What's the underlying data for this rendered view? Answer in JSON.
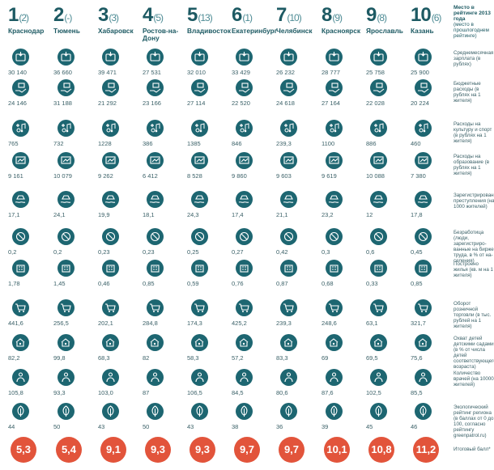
{
  "colors": {
    "icon_bg": "#1d6671",
    "score_bg": "#e2543b",
    "rank": "#1d5a63"
  },
  "ranking_title": "Место в рейтинге 2013 года",
  "ranking_note": "(место в прошлогоднем рейтинге)",
  "cities": [
    {
      "rank": "1",
      "prev": "(2)",
      "name": "Краснодар"
    },
    {
      "rank": "2",
      "prev": "(-)",
      "name": "Тюмень"
    },
    {
      "rank": "3",
      "prev": "(3)",
      "name": "Хабаровск"
    },
    {
      "rank": "4",
      "prev": "(5)",
      "name": "Ростов-на-Дону"
    },
    {
      "rank": "5",
      "prev": "(13)",
      "name": "Владивосток"
    },
    {
      "rank": "6",
      "prev": "(1)",
      "name": "Екатеринбург"
    },
    {
      "rank": "7",
      "prev": "(10)",
      "name": "Челябинск"
    },
    {
      "rank": "8",
      "prev": "(9)",
      "name": "Красноярск"
    },
    {
      "rank": "9",
      "prev": "(8)",
      "name": "Ярославль"
    },
    {
      "rank": "10",
      "prev": "(6)",
      "name": "Казань"
    }
  ],
  "metrics": [
    {
      "icon": "wallet-icon",
      "label": "Среднемесячная зарплата (в рублях)",
      "values": [
        "30 140",
        "36 660",
        "39 471",
        "27 531",
        "32 010",
        "33 429",
        "26 232",
        "28 777",
        "25 758",
        "25 900"
      ]
    },
    {
      "icon": "budget-hand-icon",
      "label": "Бюджетные расходы (в рублях на 1 жителя)",
      "values": [
        "24 146",
        "31 188",
        "21 292",
        "23 166",
        "27 114",
        "22 520",
        "24 618",
        "27 164",
        "22 028",
        "20 224"
      ]
    },
    {
      "icon": "culture-sport-icon",
      "label": "Расходы на культуру и спорт (в рублях на 1 жителя)",
      "values": [
        "765",
        "732",
        "1228",
        "386",
        "1385",
        "846",
        "239,3",
        "1100",
        "886",
        "460"
      ]
    },
    {
      "icon": "education-icon",
      "label": "Расходы на образование (в рублях на 1 жителя)",
      "values": [
        "9 161",
        "10 079",
        "9 262",
        "6 412",
        "8 528",
        "9 860",
        "9 603",
        "9 619",
        "10 088",
        "7 380"
      ]
    },
    {
      "icon": "crime-icon",
      "label": "Зарегистрированные преступления (на 1000 жителей)",
      "values": [
        "17,1",
        "24,1",
        "19,9",
        "18,1",
        "24,3",
        "17,4",
        "21,1",
        "23,2",
        "12",
        "17,8"
      ]
    },
    {
      "icon": "unemployment-icon",
      "label": "Безработица (люди, зарегистриро-ванные на бирже труда, в % от на-селения)",
      "values": [
        "0,2",
        "0,2",
        "0,23",
        "0,23",
        "0,25",
        "0,27",
        "0,42",
        "0,3",
        "0,6",
        "0,45"
      ]
    },
    {
      "icon": "housing-icon",
      "label": "Построено жилья (кв. м на 1 жителя)",
      "values": [
        "1,78",
        "1,45",
        "0,46",
        "0,85",
        "0,59",
        "0,76",
        "0,87",
        "0,68",
        "0,33",
        "0,85"
      ]
    },
    {
      "icon": "cart-icon",
      "label": "Оборот розничной торговли (в тыс. рублей на 1 жителя)",
      "values": [
        "441,6",
        "256,5",
        "202,1",
        "284,8",
        "174,3",
        "425,2",
        "239,3",
        "248,6",
        "63,1",
        "321,7"
      ]
    },
    {
      "icon": "kindergarten-icon",
      "label": "Охват детей детскими садами (в % от числа детей соответствующего возраста)",
      "values": [
        "82,2",
        "99,8",
        "68,3",
        "82",
        "58,3",
        "57,2",
        "83,3",
        "69",
        "69,5",
        "75,6"
      ]
    },
    {
      "icon": "doctor-icon",
      "label": "Количество врачей (на 10000 жителей)",
      "values": [
        "105,8",
        "93,3",
        "103,0",
        "87",
        "106,5",
        "84,5",
        "80,6",
        "87,6",
        "102,5",
        "85,5"
      ]
    },
    {
      "icon": "leaf-icon",
      "label": "Экологический рейтинг региона (в баллах от 0 до 100, согласно рейтингу greenpatrol.ru)",
      "values": [
        "44",
        "50",
        "43",
        "50",
        "43",
        "38",
        "36",
        "39",
        "45",
        "46"
      ]
    }
  ],
  "total": {
    "label": "Итоговый балл*",
    "values": [
      "5,3",
      "5,4",
      "9,1",
      "9,3",
      "9,3",
      "9,7",
      "9,7",
      "10,1",
      "10,8",
      "11,2"
    ]
  }
}
